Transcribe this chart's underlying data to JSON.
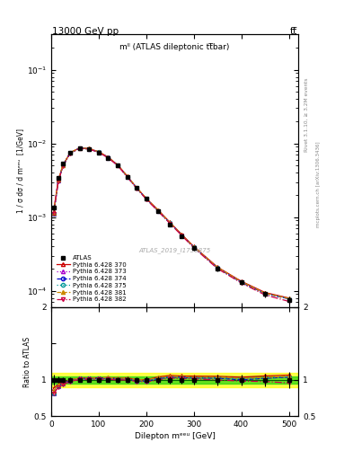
{
  "title_top": "13000 GeV pp",
  "title_top_right": "tt̅",
  "panel_label": "mˡˡ (ATLAS dileptonic tt̅bar)",
  "watermark": "ATLAS_2019_I1759875",
  "right_label_top": "Rivet 3.1.10, ≥ 3.2M events",
  "right_label_bot": "mcplots.cern.ch [arXiv:1306.3436]",
  "xlabel": "Dilepton mᵉᵉᵘ [GeV]",
  "ylabel_main": "1 / σ dσ / d mᵉᵉᵘ  [1/GeV]",
  "ylabel_ratio": "Ratio to ATLAS",
  "x_data": [
    5,
    15,
    25,
    40,
    60,
    80,
    100,
    120,
    140,
    160,
    180,
    200,
    225,
    250,
    275,
    300,
    350,
    400,
    450,
    500
  ],
  "atlas_y": [
    0.00135,
    0.0034,
    0.0053,
    0.0075,
    0.0085,
    0.0083,
    0.0075,
    0.0063,
    0.005,
    0.0035,
    0.0025,
    0.0018,
    0.0012,
    0.0008,
    0.00055,
    0.00038,
    0.0002,
    0.00013,
    9e-05,
    7.5e-05
  ],
  "atlas_yerr": [
    0.0001,
    0.00015,
    0.0002,
    0.00025,
    0.00025,
    0.00025,
    0.00025,
    0.0002,
    0.0002,
    0.00015,
    0.0001,
    8e-05,
    6e-05,
    4e-05,
    3e-05,
    2.5e-05,
    1.5e-05,
    1e-05,
    8e-06,
    8e-06
  ],
  "pythia_370_y": [
    0.0012,
    0.0032,
    0.0051,
    0.0075,
    0.0087,
    0.0085,
    0.0077,
    0.0065,
    0.0051,
    0.0036,
    0.0025,
    0.0018,
    0.00125,
    0.00085,
    0.00058,
    0.0004,
    0.00021,
    0.000135,
    9.5e-05,
    8e-05
  ],
  "pythia_373_y": [
    0.0011,
    0.0031,
    0.005,
    0.0074,
    0.0086,
    0.0084,
    0.0076,
    0.0064,
    0.00505,
    0.00355,
    0.00248,
    0.00178,
    0.00122,
    0.00083,
    0.00057,
    0.00039,
    0.000205,
    0.000132,
    9.2e-05,
    7.8e-05
  ],
  "pythia_374_y": [
    0.0011,
    0.00315,
    0.00505,
    0.00745,
    0.00865,
    0.00845,
    0.00765,
    0.00645,
    0.00505,
    0.00355,
    0.00247,
    0.00177,
    0.00122,
    0.00083,
    0.00057,
    0.00039,
    0.000205,
    0.00013,
    9.2e-05,
    7.8e-05
  ],
  "pythia_375_y": [
    0.0011,
    0.0031,
    0.005,
    0.0074,
    0.0086,
    0.0084,
    0.0076,
    0.0064,
    0.00505,
    0.00355,
    0.00248,
    0.00178,
    0.00122,
    0.00083,
    0.00057,
    0.00039,
    0.000205,
    0.000132,
    9.2e-05,
    7.8e-05
  ],
  "pythia_381_y": [
    0.00115,
    0.0032,
    0.0051,
    0.0075,
    0.0087,
    0.0085,
    0.0077,
    0.0065,
    0.0051,
    0.0036,
    0.0025,
    0.0018,
    0.00124,
    0.00084,
    0.000575,
    0.000395,
    0.000208,
    0.000133,
    9.3e-05,
    7.9e-05
  ],
  "pythia_382_y": [
    0.0011,
    0.00305,
    0.00495,
    0.00735,
    0.00855,
    0.00835,
    0.00755,
    0.00635,
    0.005,
    0.0035,
    0.00245,
    0.00175,
    0.0012,
    0.00082,
    0.00056,
    0.000385,
    0.0002,
    0.000128,
    8.8e-05,
    7.2e-05
  ],
  "color_370": "#cc0000",
  "color_373": "#aa00cc",
  "color_374": "#0000cc",
  "color_375": "#009999",
  "color_381": "#cc8800",
  "color_382": "#cc0044",
  "green_band": 0.05,
  "yellow_band": 0.1,
  "ylim_main": [
    6e-05,
    0.3
  ],
  "ylim_ratio": [
    0.5,
    2.0
  ],
  "xlim": [
    0,
    520
  ]
}
